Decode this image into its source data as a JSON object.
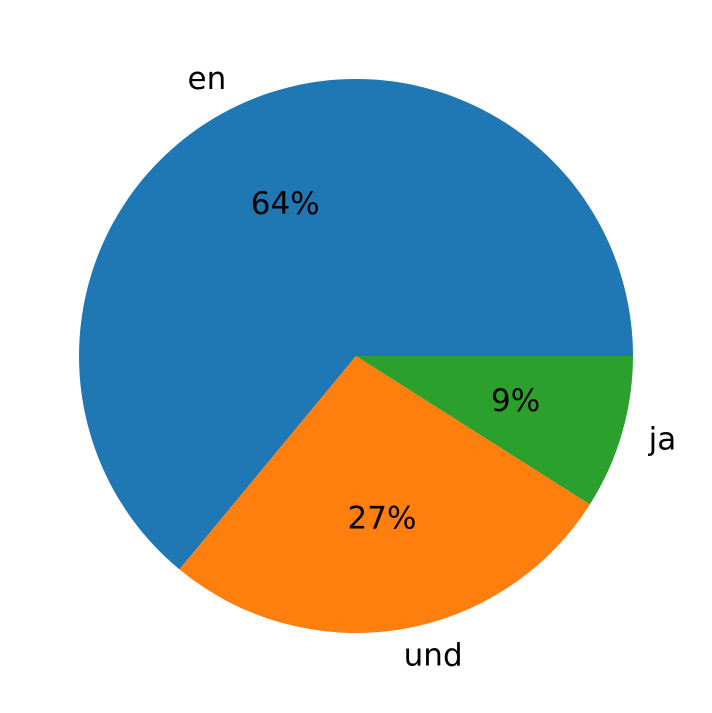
{
  "chart_data": {
    "type": "pie",
    "categories": [
      "en",
      "und",
      "ja"
    ],
    "values": [
      64,
      27,
      9
    ],
    "value_labels": [
      "64%",
      "27%",
      "9%"
    ],
    "colors": [
      "#1f77b4",
      "#ff7f0e",
      "#2ca02c"
    ]
  }
}
